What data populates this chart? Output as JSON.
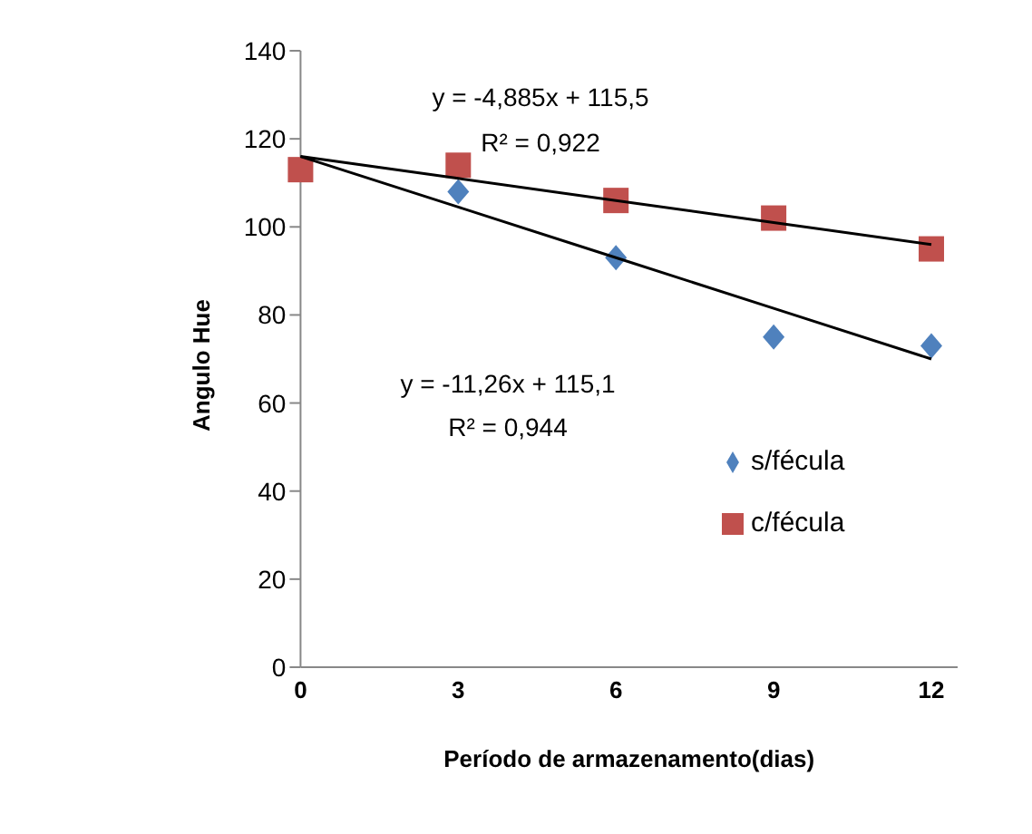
{
  "chart_data": {
    "type": "scatter",
    "xlabel": "Período de armazenamento(dias)",
    "ylabel": "Angulo Hue",
    "x": [
      0,
      3,
      6,
      9,
      12
    ],
    "series": [
      {
        "name": "s/fécula",
        "color": "#4f81bd",
        "values": [
          null,
          108,
          93,
          75,
          73
        ],
        "marker": "diamond"
      },
      {
        "name": "c/fécula",
        "color": "#c0504d",
        "values": [
          113,
          114,
          106,
          102,
          95
        ],
        "marker": "square"
      },
      {
        "type": "line",
        "color": "#000000",
        "x": [
          0,
          3,
          6,
          9,
          12
        ],
        "values": [
          116,
          111,
          106,
          101,
          96
        ],
        "marker": "none"
      },
      {
        "type": "line",
        "color": "#000000",
        "x": [
          0,
          3,
          6,
          9,
          12
        ],
        "values": [
          116,
          104.5,
          93,
          81.5,
          70
        ],
        "marker": "none"
      }
    ],
    "xlim": [
      0,
      12.5
    ],
    "xticks": [
      0,
      3,
      6,
      9,
      12
    ],
    "ylim": [
      0,
      140
    ],
    "yticks": [
      0,
      20,
      40,
      60,
      80,
      100,
      120,
      140
    ],
    "grid": false,
    "legend": "right",
    "annotations": [
      "y = -4,885x + 115,5",
      "R² = 0,922",
      "y = -11,26x + 115,1",
      "R² = 0,944"
    ]
  }
}
